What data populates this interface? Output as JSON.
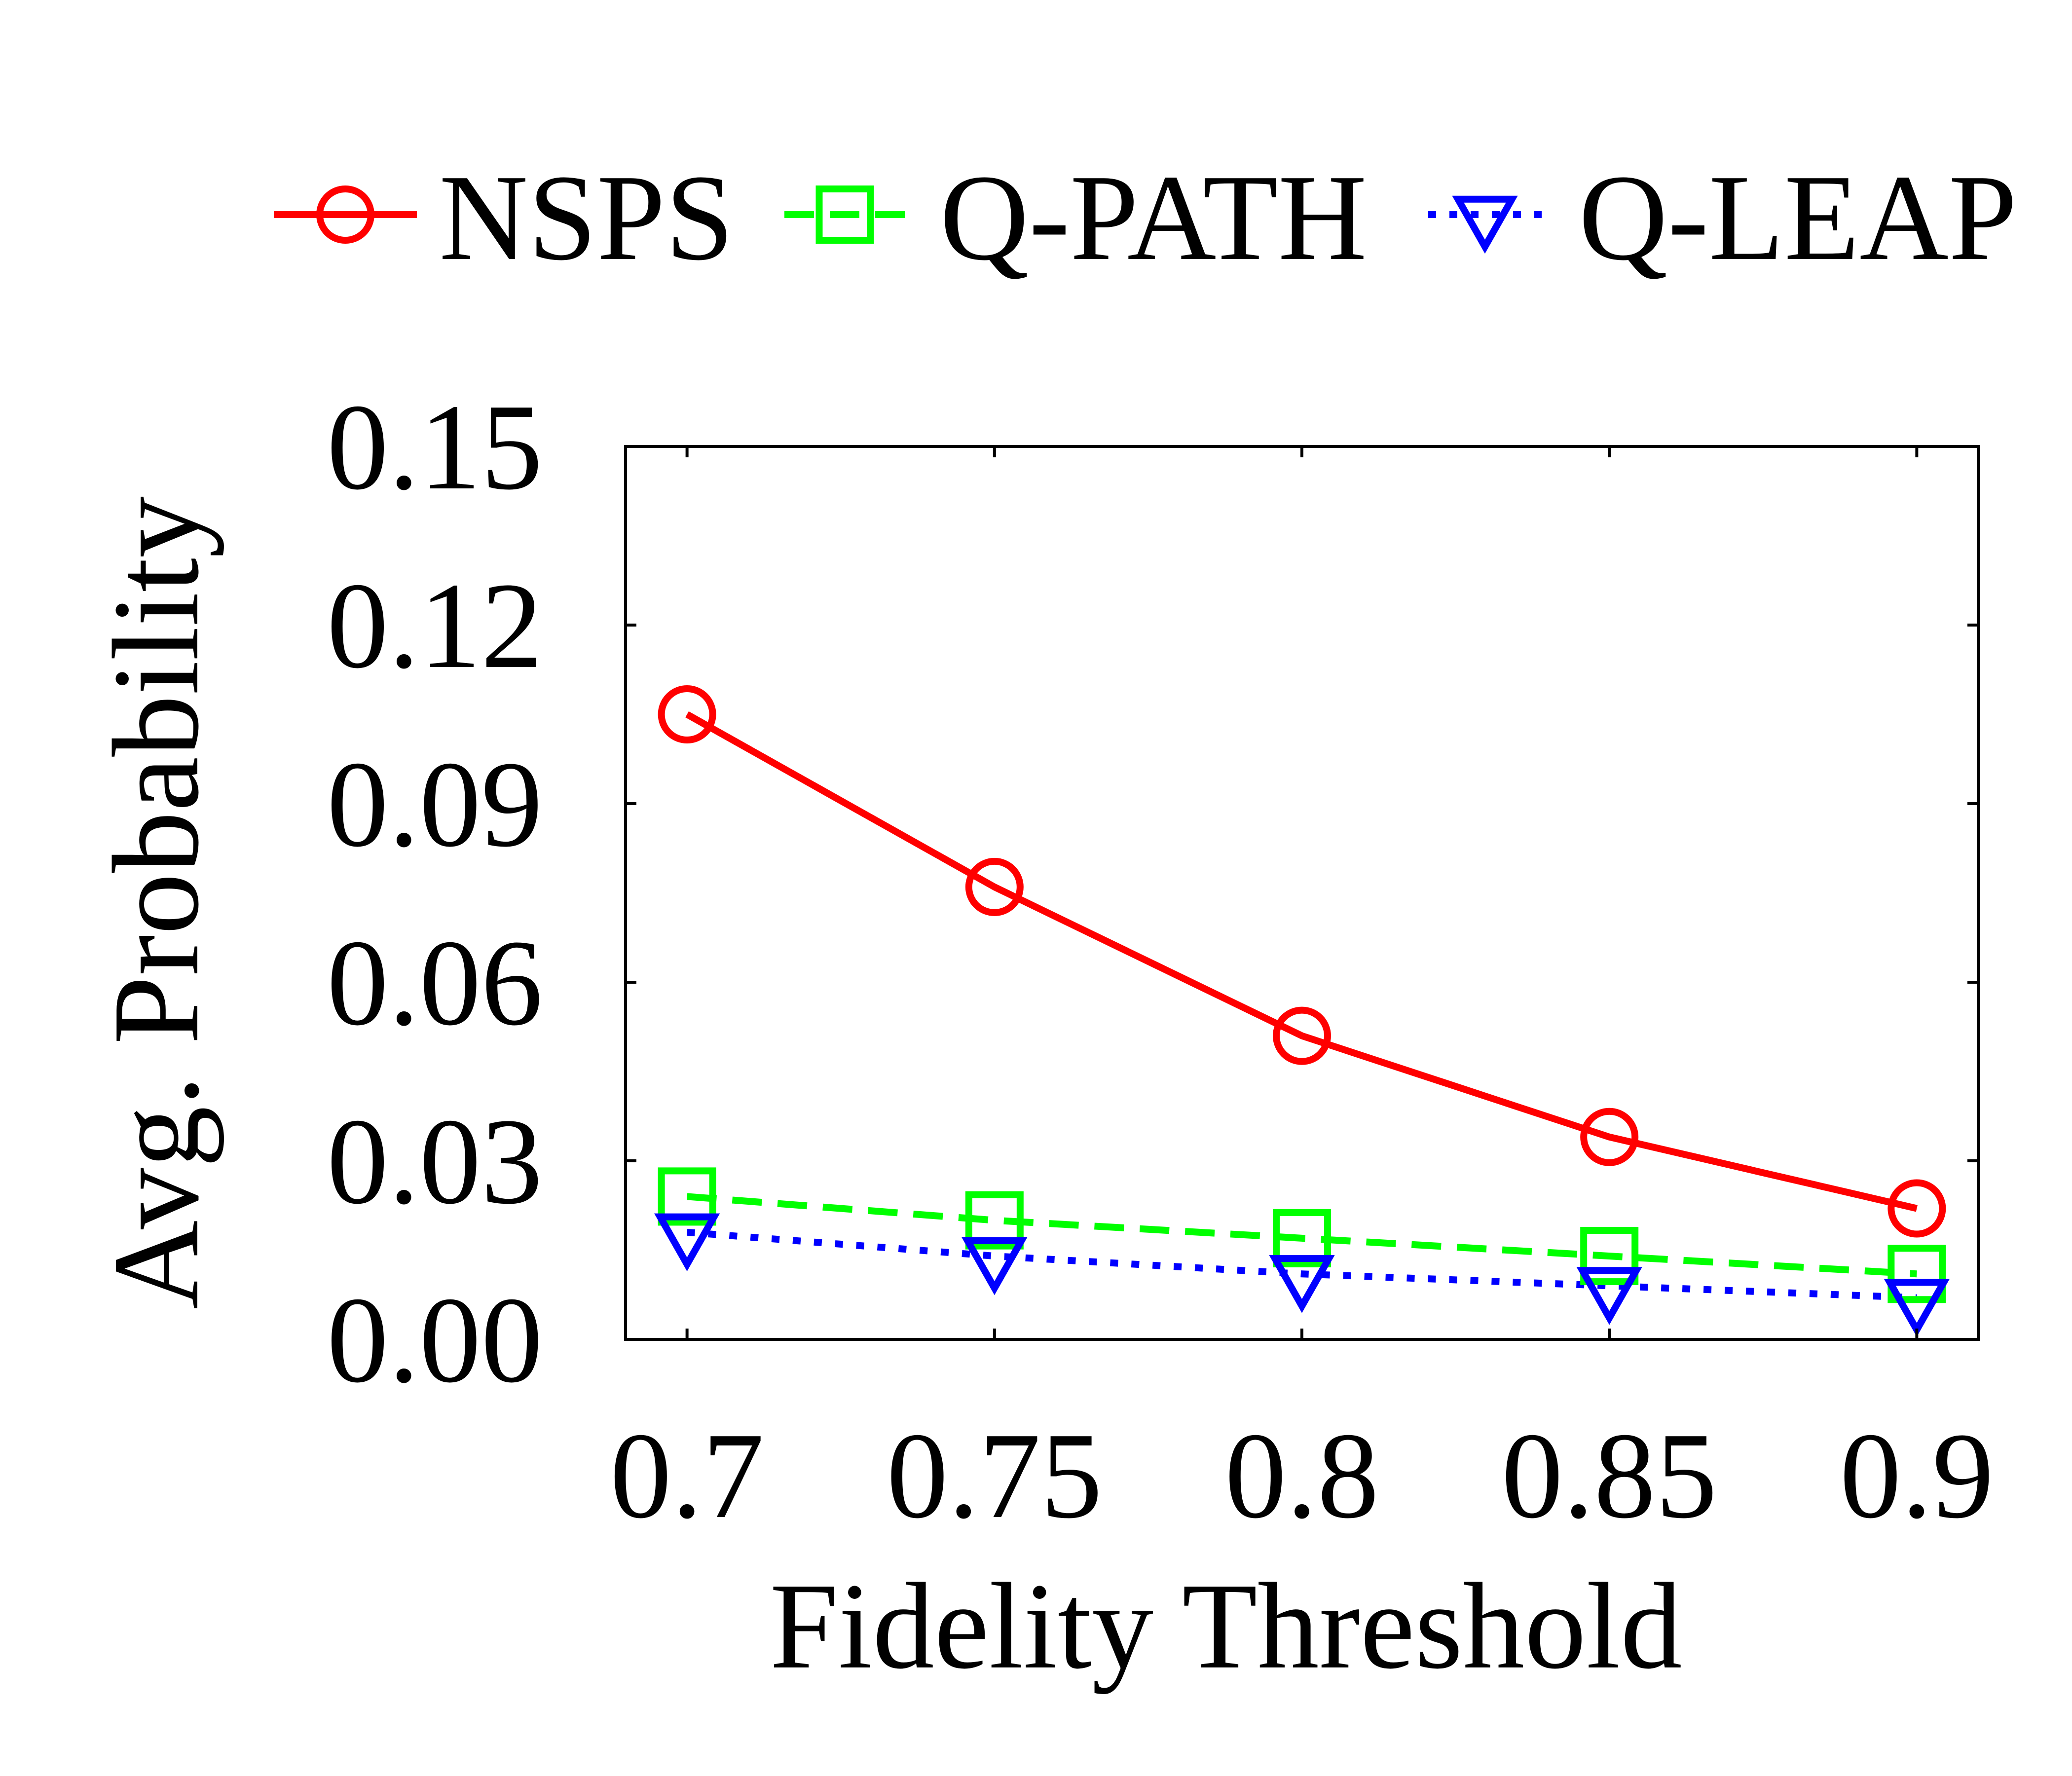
{
  "chart_data": {
    "type": "line",
    "xlabel": "Fidelity Threshold",
    "ylabel": "Avg. Probability",
    "x": [
      0.7,
      0.75,
      0.8,
      0.85,
      0.9
    ],
    "x_tick_labels": [
      "0.7",
      "0.75",
      "0.8",
      "0.85",
      "0.9"
    ],
    "y_tick_values": [
      0.0,
      0.03,
      0.06,
      0.09,
      0.12,
      0.15
    ],
    "y_tick_labels": [
      "0.00",
      "0.03",
      "0.06",
      "0.09",
      "0.12",
      "0.15"
    ],
    "xlim": [
      0.69,
      0.91
    ],
    "ylim": [
      0.0,
      0.15
    ],
    "grid": false,
    "legend_position": "top",
    "series": [
      {
        "name": "NSPS",
        "color": "#ff0000",
        "line_style": "solid",
        "marker": "circle",
        "values": [
          0.105,
          0.076,
          0.051,
          0.034,
          0.022
        ]
      },
      {
        "name": "Q-PATH",
        "color": "#00ff00",
        "line_style": "dashed",
        "marker": "square",
        "values": [
          0.024,
          0.02,
          0.017,
          0.014,
          0.011
        ]
      },
      {
        "name": "Q-LEAP",
        "color": "#0000ff",
        "line_style": "dotted",
        "marker": "triangle-down",
        "values": [
          0.018,
          0.014,
          0.011,
          0.009,
          0.007
        ]
      }
    ]
  }
}
